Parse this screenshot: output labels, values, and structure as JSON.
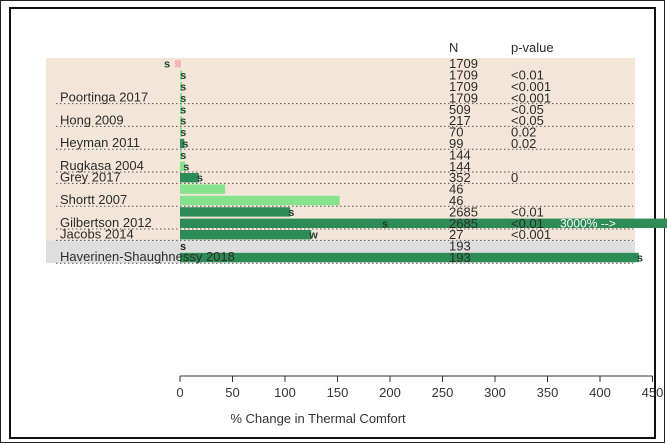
{
  "chart_data": {
    "type": "bar",
    "orientation": "horizontal",
    "xlabel": "% Change in Thermal Comfort",
    "xlim": [
      0,
      450
    ],
    "xticks": [
      "0",
      "50",
      "100",
      "150",
      "200",
      "250",
      "300",
      "350",
      "400",
      "450"
    ],
    "column_headers": {
      "n": "N",
      "p": "p-value"
    },
    "colors": {
      "pale": "#f3e6d9",
      "grey": "#dedede",
      "light": "#86e38d",
      "dark": "#2d8c55",
      "grid": "#555555"
    },
    "study_labels": [
      {
        "text": "Poortinga 2017",
        "row": 3
      },
      {
        "text": "Hong 2009",
        "row": 5
      },
      {
        "text": "Heyman 2011",
        "row": 7
      },
      {
        "text": "Rugkasa 2004",
        "row": 9
      },
      {
        "text": "Grey 2017",
        "row": 10
      },
      {
        "text": "Shortt 2007",
        "row": 12
      },
      {
        "text": "Gilbertson 2012",
        "row": 14
      },
      {
        "text": "Jacobs 2014",
        "row": 15
      },
      {
        "text": "Haverinen-Shaughnessy 2018",
        "row": 17
      }
    ],
    "rows": [
      {
        "value": -10,
        "color": "pink",
        "marker": "s",
        "n": "1709",
        "p": ""
      },
      {
        "value": 2,
        "color": "light",
        "marker": "s",
        "n": "1709",
        "p": "<0.01"
      },
      {
        "value": 2,
        "color": "light",
        "marker": "s",
        "n": "1709",
        "p": "<0.001"
      },
      {
        "value": 2,
        "color": "light",
        "marker": "s",
        "n": "1709",
        "p": "<0.001"
      },
      {
        "value": 2,
        "color": "light",
        "marker": "s",
        "n": "509",
        "p": "<0.05"
      },
      {
        "value": 2,
        "color": "light",
        "marker": "s",
        "n": "217",
        "p": "<0.05"
      },
      {
        "value": 2,
        "color": "light",
        "marker": "s",
        "n": "70",
        "p": "0.02"
      },
      {
        "value": 4,
        "color": "dark",
        "marker": "s",
        "n": "99",
        "p": "0.02"
      },
      {
        "value": 2,
        "color": "light",
        "marker": "s",
        "n": "144",
        "p": ""
      },
      {
        "value": 5,
        "color": "light",
        "marker": "s",
        "n": "144",
        "p": ""
      },
      {
        "value": 18,
        "color": "dark",
        "marker": "s",
        "n": "352",
        "p": "0"
      },
      {
        "value": 43,
        "color": "light",
        "marker": "",
        "n": "46",
        "p": ""
      },
      {
        "value": 152,
        "color": "light",
        "marker": "",
        "n": "46",
        "p": ""
      },
      {
        "value": 105,
        "color": "dark",
        "marker": "s",
        "n": "2685",
        "p": "<0.01"
      },
      {
        "value": 3000,
        "color": "dark",
        "marker": "s",
        "n": "2685",
        "p": "<0.01",
        "note": "3000% -->"
      },
      {
        "value": 125,
        "color": "dark",
        "marker": "w",
        "n": "27",
        "p": "<0.001"
      },
      {
        "value": 0,
        "color": "dark",
        "marker": "s",
        "n": "193",
        "p": ""
      },
      {
        "value": 437,
        "color": "dark",
        "marker": "s",
        "n": "193",
        "p": ""
      }
    ]
  }
}
